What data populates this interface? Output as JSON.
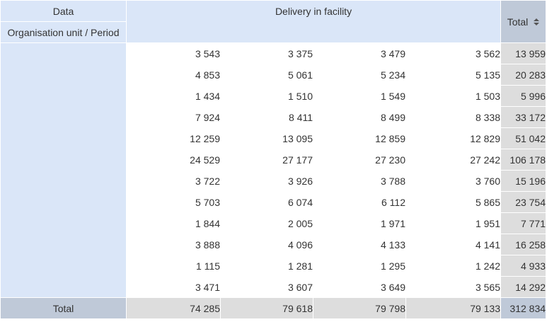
{
  "header": {
    "data_label": "Data",
    "org_unit_period_label": "Organisation unit / Period",
    "measure_label": "Delivery in facility",
    "total_label": "Total"
  },
  "rows": [
    {
      "values": [
        "3 543",
        "3 375",
        "3 479",
        "3 562"
      ],
      "total": "13 959"
    },
    {
      "values": [
        "4 853",
        "5 061",
        "5 234",
        "5 135"
      ],
      "total": "20 283"
    },
    {
      "values": [
        "1 434",
        "1 510",
        "1 549",
        "1 503"
      ],
      "total": "5 996"
    },
    {
      "values": [
        "7 924",
        "8 411",
        "8 499",
        "8 338"
      ],
      "total": "33 172"
    },
    {
      "values": [
        "12 259",
        "13 095",
        "12 859",
        "12 829"
      ],
      "total": "51 042"
    },
    {
      "values": [
        "24 529",
        "27 177",
        "27 230",
        "27 242"
      ],
      "total": "106 178"
    },
    {
      "values": [
        "3 722",
        "3 926",
        "3 788",
        "3 760"
      ],
      "total": "15 196"
    },
    {
      "values": [
        "5 703",
        "6 074",
        "6 112",
        "5 865"
      ],
      "total": "23 754"
    },
    {
      "values": [
        "1 844",
        "2 005",
        "1 971",
        "1 951"
      ],
      "total": "7 771"
    },
    {
      "values": [
        "3 888",
        "4 096",
        "4 133",
        "4 141"
      ],
      "total": "16 258"
    },
    {
      "values": [
        "1 115",
        "1 281",
        "1 295",
        "1 242"
      ],
      "total": "4 933"
    },
    {
      "values": [
        "3 471",
        "3 607",
        "3 649",
        "3 565"
      ],
      "total": "14 292"
    }
  ],
  "footer": {
    "label": "Total",
    "values": [
      "74 285",
      "79 618",
      "79 798",
      "79 133"
    ],
    "grand_total": "312 834"
  },
  "icons": {
    "sort": "sort-icon"
  },
  "colors": {
    "header_bg": "#dae6f8",
    "total_header_bg": "#bfc9d8",
    "total_cell_bg": "#dddddd",
    "grid_border": "#dddddd"
  }
}
